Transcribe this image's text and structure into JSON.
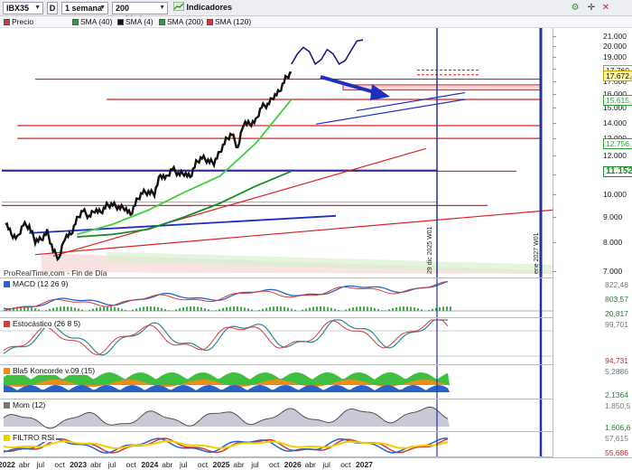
{
  "toolbar": {
    "symbol": "IBX35",
    "type_button": "D",
    "period": "1 semana",
    "units": "200 unidades",
    "indicators_label": "Indicadores"
  },
  "legend": [
    {
      "name": "Precio",
      "color": "#d23b3b"
    },
    {
      "name": "SMA (40)",
      "color": "#27a43a"
    },
    {
      "name": "SMA (4)",
      "color": "#111111"
    },
    {
      "name": "SMA (200)",
      "color": "#27a43a"
    },
    {
      "name": "SMA (120)",
      "color": "#d23b3b"
    }
  ],
  "price_panel": {
    "footer_text": "ProRealTime.com - Fin de Día",
    "y_ticks": [
      "21.000",
      "20.000",
      "19.000",
      "18.000",
      "17.000",
      "16.000",
      "15.000",
      "14.000",
      "13.000",
      "12.000",
      "11.000",
      "10.000",
      "9.000",
      "8.000",
      "7.000"
    ],
    "boxed_labels": [
      {
        "text": "17.760,25",
        "bg": "#ffffff",
        "fg": "#222222",
        "border": "#999999"
      },
      {
        "text": "17.672,40",
        "bg": "#fff3a8",
        "fg": "#111111",
        "border": "#c9a800"
      },
      {
        "text": "15.615,37",
        "bg": "#ffffff",
        "fg": "#27a43a",
        "border": "#27a43a"
      },
      {
        "text": "12.756,72",
        "bg": "#ffffff",
        "fg": "#27a43a",
        "border": "#27a43a"
      },
      {
        "text": "11.152,24",
        "bg": "#ffffff",
        "fg": "#1a8a2a",
        "border": "#1a8a2a"
      }
    ],
    "vline_labels": [
      "29 dic 2025 W01",
      "ene 2027 W01"
    ]
  },
  "indicators": [
    {
      "title": "MACD (12 26 9)",
      "labels": [
        "822,48",
        "803,57",
        "20,817"
      ]
    },
    {
      "title": "Estocástico (26 8 5)",
      "labels": [
        "99,701",
        "94,731"
      ]
    },
    {
      "title": "Bla5 Koncorde v.09 (15)",
      "labels": [
        "5,2886",
        "2,1364"
      ]
    },
    {
      "title": "Mom (12)",
      "labels": [
        "1.850,5",
        "1.606,6"
      ]
    },
    {
      "title": "FILTRO RSI",
      "labels": [
        "57,615",
        "55,686"
      ]
    }
  ],
  "x_axis": [
    {
      "text": "2022",
      "year": true
    },
    {
      "text": "abr",
      "year": false
    },
    {
      "text": "jul",
      "year": false
    },
    {
      "text": "oct",
      "year": false
    },
    {
      "text": "2023",
      "year": true
    },
    {
      "text": "abr",
      "year": false
    },
    {
      "text": "jul",
      "year": false
    },
    {
      "text": "oct",
      "year": false
    },
    {
      "text": "2024",
      "year": true
    },
    {
      "text": "abr",
      "year": false
    },
    {
      "text": "jul",
      "year": false
    },
    {
      "text": "oct",
      "year": false
    },
    {
      "text": "2025",
      "year": true
    },
    {
      "text": "abr",
      "year": false
    },
    {
      "text": "jul",
      "year": false
    },
    {
      "text": "oct",
      "year": false
    },
    {
      "text": "2026",
      "year": true
    },
    {
      "text": "abr",
      "year": false
    },
    {
      "text": "jul",
      "year": false
    },
    {
      "text": "oct",
      "year": false
    },
    {
      "text": "2027",
      "year": true
    }
  ],
  "chart_data": {
    "type": "line",
    "symbol": "IBX35",
    "x_unit": "weeks",
    "y_scale": "log",
    "ylim": [
      6900,
      21600
    ],
    "x_start": "2022-01",
    "x_end": "2027-02",
    "price_path": [
      {
        "x": "2022-01",
        "y": 8800
      },
      {
        "x": "2022-02",
        "y": 8300
      },
      {
        "x": "2022-03",
        "y": 8150
      },
      {
        "x": "2022-04",
        "y": 8700
      },
      {
        "x": "2022-05",
        "y": 8600
      },
      {
        "x": "2022-06",
        "y": 8050
      },
      {
        "x": "2022-07",
        "y": 8100
      },
      {
        "x": "2022-08",
        "y": 8400
      },
      {
        "x": "2022-09",
        "y": 7700
      },
      {
        "x": "2022-10",
        "y": 7400
      },
      {
        "x": "2022-11",
        "y": 8200
      },
      {
        "x": "2022-12",
        "y": 8300
      },
      {
        "x": "2023-01",
        "y": 8900
      },
      {
        "x": "2023-02",
        "y": 9300
      },
      {
        "x": "2023-03",
        "y": 9000
      },
      {
        "x": "2023-04",
        "y": 9300
      },
      {
        "x": "2023-05",
        "y": 9200
      },
      {
        "x": "2023-06",
        "y": 9500
      },
      {
        "x": "2023-07",
        "y": 9550
      },
      {
        "x": "2023-08",
        "y": 9400
      },
      {
        "x": "2023-09",
        "y": 9400
      },
      {
        "x": "2023-10",
        "y": 9100
      },
      {
        "x": "2023-11",
        "y": 9700
      },
      {
        "x": "2023-12",
        "y": 10100
      },
      {
        "x": "2024-01",
        "y": 10100
      },
      {
        "x": "2024-02",
        "y": 10050
      },
      {
        "x": "2024-03",
        "y": 10950
      },
      {
        "x": "2024-04",
        "y": 10800
      },
      {
        "x": "2024-05",
        "y": 11300
      },
      {
        "x": "2024-06",
        "y": 11000
      },
      {
        "x": "2024-07",
        "y": 11050
      },
      {
        "x": "2024-08",
        "y": 10850
      },
      {
        "x": "2024-09",
        "y": 11600
      },
      {
        "x": "2024-10",
        "y": 11900
      },
      {
        "x": "2024-11",
        "y": 11700
      },
      {
        "x": "2024-12",
        "y": 11600
      },
      {
        "x": "2025-01",
        "y": 12200
      },
      {
        "x": "2025-02",
        "y": 12900
      },
      {
        "x": "2025-03",
        "y": 13300
      },
      {
        "x": "2025-04",
        "y": 12400
      },
      {
        "x": "2025-05",
        "y": 14000
      },
      {
        "x": "2025-06",
        "y": 13900
      },
      {
        "x": "2025-07",
        "y": 14100
      },
      {
        "x": "2025-08",
        "y": 15100
      },
      {
        "x": "2025-09",
        "y": 15200
      },
      {
        "x": "2025-10",
        "y": 15800
      },
      {
        "x": "2025-11",
        "y": 16200
      },
      {
        "x": "2025-12",
        "y": 17200
      },
      {
        "x": "2026-01",
        "y": 17700
      }
    ],
    "projection_path": [
      {
        "x": "2026-01",
        "y": 18400
      },
      {
        "x": "2026-02",
        "y": 19300
      },
      {
        "x": "2026-03",
        "y": 19900
      },
      {
        "x": "2026-04",
        "y": 19500
      },
      {
        "x": "2026-05",
        "y": 18400
      },
      {
        "x": "2026-06",
        "y": 18800
      },
      {
        "x": "2026-07",
        "y": 19700
      },
      {
        "x": "2026-08",
        "y": 19300
      },
      {
        "x": "2026-09",
        "y": 18400
      },
      {
        "x": "2026-10",
        "y": 18700
      },
      {
        "x": "2026-11",
        "y": 19600
      },
      {
        "x": "2026-12",
        "y": 20500
      },
      {
        "x": "2027-01",
        "y": 20600
      }
    ],
    "sma40": [
      {
        "x": "2023-01",
        "y": 8300
      },
      {
        "x": "2023-07",
        "y": 8700
      },
      {
        "x": "2024-01",
        "y": 9300
      },
      {
        "x": "2024-07",
        "y": 10100
      },
      {
        "x": "2025-01",
        "y": 10900
      },
      {
        "x": "2025-07",
        "y": 12700
      },
      {
        "x": "2026-01",
        "y": 15600
      }
    ],
    "sma200": [
      {
        "x": "2023-01",
        "y": 8200
      },
      {
        "x": "2023-07",
        "y": 8300
      },
      {
        "x": "2024-01",
        "y": 8500
      },
      {
        "x": "2024-07",
        "y": 9000
      },
      {
        "x": "2025-01",
        "y": 9600
      },
      {
        "x": "2025-07",
        "y": 10400
      },
      {
        "x": "2026-01",
        "y": 11150
      }
    ],
    "horizontal_levels": [
      17150,
      15600,
      13800,
      13000,
      11150,
      9500
    ],
    "vertical_markers": [
      "2025-12-29",
      "2027-01-01"
    ],
    "last_price": 17760.25,
    "close_price": 17672.4
  }
}
